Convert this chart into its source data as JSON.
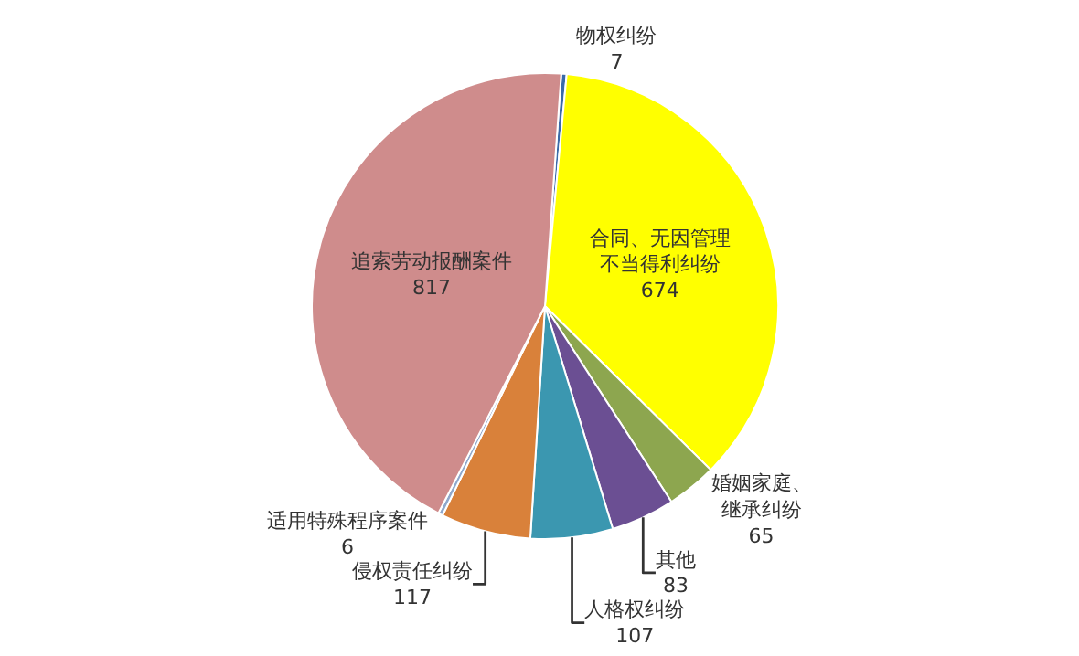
{
  "chart_data": {
    "type": "pie",
    "categories": [
      "物权纠纷",
      "合同、无因管理不当得利纠纷",
      "婚姻家庭、继承纠纷",
      "其他",
      "人格权纠纷",
      "侵权责任纠纷",
      "适用特殊程序案件",
      "追索劳动报酬案件"
    ],
    "values": [
      7,
      674,
      65,
      83,
      107,
      117,
      6,
      817
    ],
    "colors": [
      "#3a6aa8",
      "#ffff00",
      "#8da64f",
      "#6b4f93",
      "#3b97b0",
      "#d9813a",
      "#8fa8cc",
      "#cf8c8c"
    ],
    "data_labels": true,
    "legend": false
  }
}
